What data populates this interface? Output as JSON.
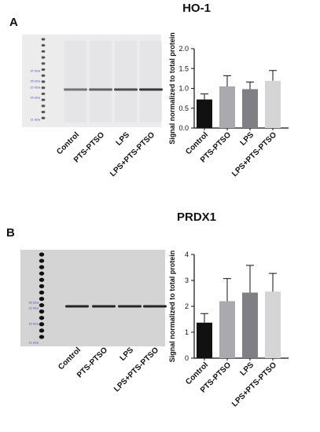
{
  "panels": [
    {
      "letter": "A",
      "title": "HO-1",
      "blot": {
        "markers": [
          "37 kDa",
          "26 kDa",
          "22 kDa",
          "15 kDa",
          "11 kDa"
        ],
        "lanes": [
          "Control",
          "PTS-PTSO",
          "LPS",
          "LPS+PTS-PTSO"
        ]
      },
      "chart_data": {
        "type": "bar",
        "categories": [
          "Control",
          "PTS-PTSO",
          "LPS",
          "LPS+PTS-PTSO"
        ],
        "values": [
          0.72,
          1.05,
          0.98,
          1.19
        ],
        "errors": [
          0.14,
          0.27,
          0.18,
          0.26
        ],
        "colors": [
          "#111111",
          "#a9a9ae",
          "#808084",
          "#d5d5d8"
        ],
        "ylabel": "Signal normalized to total protein",
        "ylim": [
          0,
          2.0
        ],
        "yticks": [
          0.0,
          0.5,
          1.0,
          1.5,
          2.0
        ],
        "ytick_labels": [
          "0.0",
          "0.5",
          "1.0",
          "1.5",
          "2.0"
        ]
      }
    },
    {
      "letter": "B",
      "title": "PRDX1",
      "blot": {
        "markers": [
          "26 kDa",
          "22 kDa",
          "15 kDa",
          "11 kDa"
        ],
        "lanes": [
          "Control",
          "PTS-PTSO",
          "LPS",
          "LPS+PTS-PTSO"
        ]
      },
      "chart_data": {
        "type": "bar",
        "categories": [
          "Control",
          "PTS-PTSO",
          "LPS",
          "LPS+PTS-PTSO"
        ],
        "values": [
          1.37,
          2.2,
          2.53,
          2.57
        ],
        "errors": [
          0.35,
          0.87,
          1.05,
          0.7
        ],
        "colors": [
          "#111111",
          "#a9a9ae",
          "#808084",
          "#d5d5d8"
        ],
        "ylabel": "Signal normalized to total protein",
        "ylim": [
          0,
          4
        ],
        "yticks": [
          0,
          1,
          2,
          3,
          4
        ],
        "ytick_labels": [
          "0",
          "1",
          "2",
          "3",
          "4"
        ]
      }
    }
  ]
}
